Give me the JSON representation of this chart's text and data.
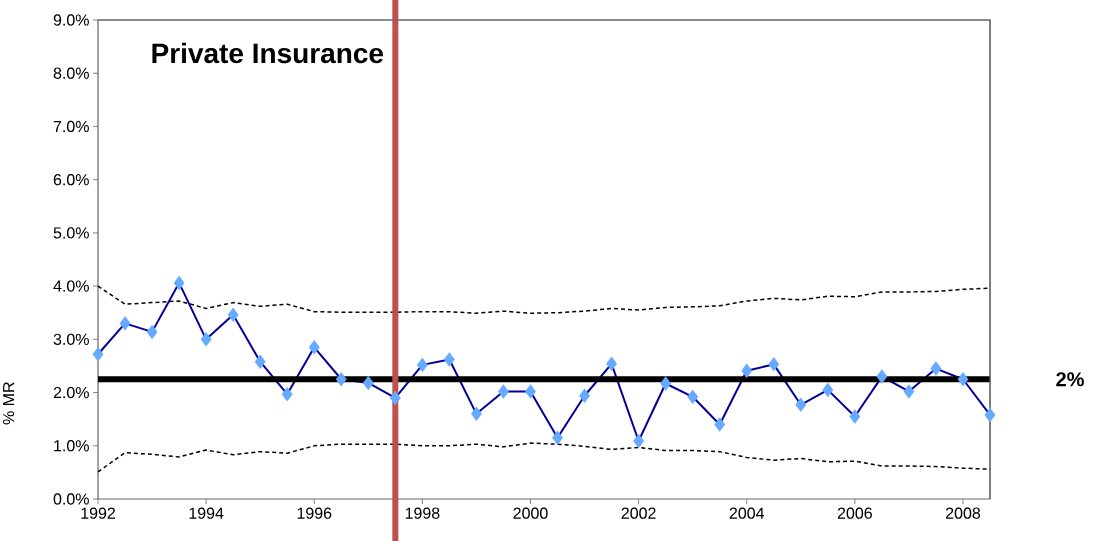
{
  "chart_data": {
    "type": "line",
    "title": "Private Insurance",
    "ylabel": "% MR",
    "x": [
      1992,
      1992.5,
      1993,
      1993.5,
      1994,
      1994.5,
      1995,
      1995.5,
      1996,
      1996.5,
      1997,
      1997.5,
      1998,
      1998.5,
      1999,
      1999.5,
      2000,
      2000.5,
      2001,
      2001.5,
      2002,
      2002.5,
      2003,
      2003.5,
      2004,
      2004.5,
      2005,
      2005.5,
      2006,
      2006.5,
      2007,
      2007.5,
      2008,
      2008.5
    ],
    "series": [
      {
        "color": "#000099",
        "marker": "diamond",
        "line_style": "solid",
        "colors": [
          "#66aaff",
          "#66aaff",
          "#66aaff",
          "#66aaff",
          "#66aaff",
          "#66aaff",
          "#66aaff",
          "#66aaff",
          "#66aaff",
          "#66aaff",
          "#66aaff",
          "#66aaff",
          "#66aaff",
          "#66aaff",
          "#66aaff",
          "#66aaff",
          "#66aaff",
          "#66aaff",
          "#66aaff",
          "#66aaff",
          "#66aaff",
          "#66aaff",
          "#66aaff",
          "#66aaff",
          "#66aaff",
          "#66aaff",
          "#66aaff",
          "#66aaff",
          "#66aaff",
          "#66aaff",
          "#66aaff",
          "#66aaff",
          "#66aaff",
          "#66aaff"
        ],
        "values": [
          2.72,
          3.3,
          3.14,
          4.06,
          3.0,
          3.46,
          2.58,
          1.97,
          2.85,
          2.25,
          2.18,
          1.9,
          2.52,
          2.62,
          1.6,
          2.02,
          2.02,
          1.15,
          1.94,
          2.54,
          1.09,
          2.17,
          1.92,
          1.4,
          2.41,
          2.53,
          1.77,
          2.05,
          1.55,
          2.3,
          2.02,
          2.45,
          2.25,
          1.58
        ]
      },
      {
        "color": "#000000",
        "marker": "none",
        "line_style": "dashed",
        "values": [
          4.0,
          3.66,
          3.69,
          3.72,
          3.58,
          3.69,
          3.62,
          3.66,
          3.52,
          3.51,
          3.51,
          3.51,
          3.52,
          3.52,
          3.49,
          3.53,
          3.49,
          3.5,
          3.53,
          3.58,
          3.55,
          3.6,
          3.61,
          3.63,
          3.72,
          3.77,
          3.74,
          3.81,
          3.8,
          3.89,
          3.89,
          3.9,
          3.94,
          3.96
        ]
      },
      {
        "color": "#000000",
        "marker": "none",
        "line_style": "dashed",
        "values": [
          0.51,
          0.87,
          0.84,
          0.79,
          0.92,
          0.83,
          0.89,
          0.86,
          1.0,
          1.03,
          1.03,
          1.03,
          1.0,
          1.0,
          1.03,
          0.98,
          1.05,
          1.03,
          0.99,
          0.93,
          0.97,
          0.91,
          0.91,
          0.89,
          0.78,
          0.73,
          0.76,
          0.7,
          0.71,
          0.62,
          0.62,
          0.61,
          0.58,
          0.56
        ]
      }
    ],
    "xlim": [
      1992,
      2008.5
    ],
    "ylim": [
      0,
      9
    ],
    "xticks": [
      1992,
      1994,
      1996,
      1998,
      2000,
      2002,
      2004,
      2006,
      2008
    ],
    "yticks": [
      {
        "value": 0,
        "label": "0.0%"
      },
      {
        "value": 1,
        "label": "1.0%"
      },
      {
        "value": 2,
        "label": "2.0%"
      },
      {
        "value": 3,
        "label": "3.0%"
      },
      {
        "value": 4,
        "label": "4.0%"
      },
      {
        "value": 5,
        "label": "5.0%"
      },
      {
        "value": 6,
        "label": "6.0%"
      },
      {
        "value": 7,
        "label": "7.0%"
      },
      {
        "value": 8,
        "label": "8.0%"
      },
      {
        "value": 9,
        "label": "9.0%"
      }
    ],
    "ref_lines": [
      {
        "axis": "y",
        "value": 2.25,
        "label": "2%",
        "color": "#000000"
      },
      {
        "axis": "x",
        "value": 1997.5,
        "color": "#c0504d"
      }
    ],
    "grid": false
  }
}
